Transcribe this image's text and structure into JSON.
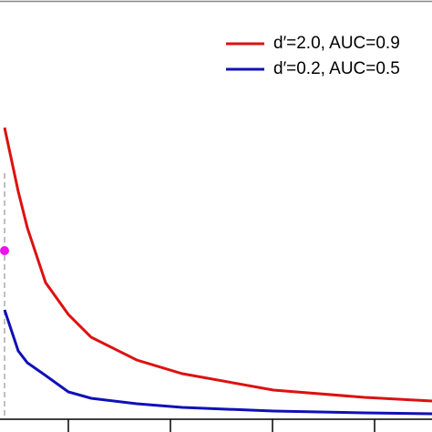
{
  "chart_data": {
    "type": "line",
    "x": [
      5,
      20,
      30,
      50,
      75,
      100,
      150,
      200,
      300,
      400,
      474
    ],
    "series": [
      {
        "name": "d′=2.0, AUC=0.9",
        "color": "#dd1111",
        "values": [
          320,
          250,
          210,
          150,
          115,
          90,
          65,
          50,
          32,
          24,
          20
        ]
      },
      {
        "name": "d′=0.2, AUC=0.5",
        "color": "#1010b8",
        "values": [
          120,
          75,
          62,
          48,
          30,
          23,
          17,
          13,
          9,
          7,
          6
        ]
      }
    ],
    "xlim": [
      0,
      474
    ],
    "ylim": [
      0,
      460
    ],
    "xticks": [
      75,
      187,
      299,
      411
    ],
    "reference_line": {
      "x": 5,
      "y": 270,
      "color": "#aaaaaa"
    },
    "reference_point": {
      "x": 5,
      "y": 185,
      "color": "#ee11ee"
    },
    "legend": "top-right"
  }
}
